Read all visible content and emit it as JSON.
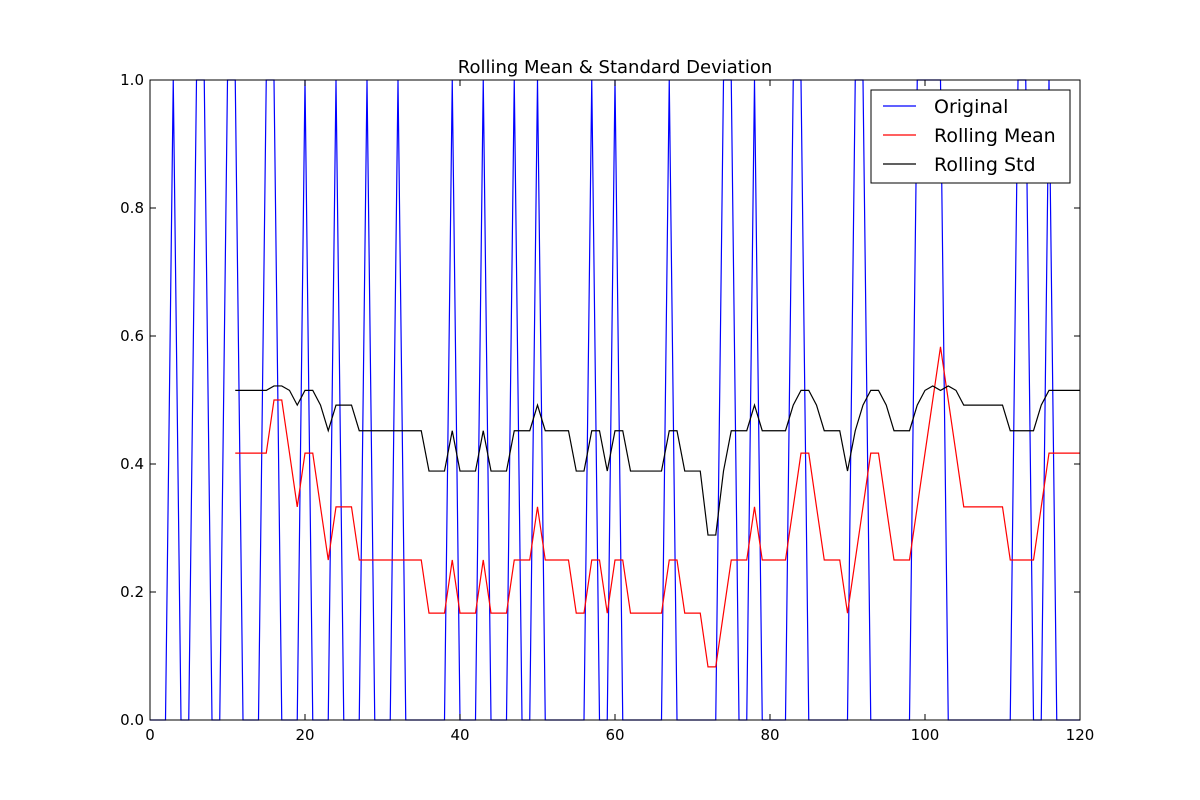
{
  "chart_data": {
    "type": "line",
    "title": "Rolling Mean & Standard Deviation",
    "xlabel": "",
    "ylabel": "",
    "xlim": [
      0,
      120
    ],
    "ylim": [
      0,
      1
    ],
    "xticks": [
      0,
      20,
      40,
      60,
      80,
      100,
      120
    ],
    "yticks": [
      0.0,
      0.2,
      0.4,
      0.6,
      0.8,
      1.0
    ],
    "xtick_labels": [
      "0",
      "20",
      "40",
      "60",
      "80",
      "100",
      "120"
    ],
    "ytick_labels": [
      "0.0",
      "0.2",
      "0.4",
      "0.6",
      "0.8",
      "1.0"
    ],
    "grid": false,
    "legend": "top-right",
    "series": [
      {
        "name": "Original",
        "color": "#0000ff",
        "x": [
          0,
          1,
          2,
          3,
          4,
          5,
          6,
          7,
          8,
          9,
          10,
          11,
          12,
          13,
          14,
          15,
          16,
          17,
          18,
          19,
          20,
          21,
          22,
          23,
          24,
          25,
          26,
          27,
          28,
          29,
          30,
          31,
          32,
          33,
          34,
          35,
          36,
          37,
          38,
          39,
          40,
          41,
          42,
          43,
          44,
          45,
          46,
          47,
          48,
          49,
          50,
          51,
          52,
          53,
          54,
          55,
          56,
          57,
          58,
          59,
          60,
          61,
          62,
          63,
          64,
          65,
          66,
          67,
          68,
          69,
          70,
          71,
          72,
          73,
          74,
          75,
          76,
          77,
          78,
          79,
          80,
          81,
          82,
          83,
          84,
          85,
          86,
          87,
          88,
          89,
          90,
          91,
          92,
          93,
          94,
          95,
          96,
          97,
          98,
          99,
          100,
          101,
          102,
          103,
          104,
          105,
          106,
          107,
          108,
          109,
          110,
          111,
          112,
          113,
          114,
          115,
          116,
          117,
          118,
          119,
          120
        ],
        "y": [
          0,
          0,
          0,
          1,
          0,
          0,
          1,
          1,
          0,
          0,
          1,
          1,
          0,
          0,
          0,
          1,
          1,
          0,
          0,
          0,
          1,
          0,
          0,
          0,
          1,
          0,
          0,
          0,
          1,
          0,
          0,
          0,
          1,
          0,
          0,
          0,
          0,
          0,
          0,
          1,
          0,
          0,
          0,
          1,
          0,
          0,
          0,
          1,
          0,
          0,
          1,
          0,
          0,
          0,
          0,
          0,
          0,
          1,
          0,
          0,
          1,
          0,
          0,
          0,
          0,
          0,
          0,
          1,
          0,
          0,
          0,
          0,
          0,
          0,
          1,
          1,
          0,
          0,
          1,
          0,
          0,
          0,
          0,
          1,
          1,
          0,
          0,
          0,
          0,
          0,
          0,
          1,
          1,
          0,
          0,
          0,
          0,
          0,
          0,
          1,
          1,
          1,
          1,
          0,
          0,
          0,
          0,
          0,
          0,
          0,
          0,
          0,
          1,
          1,
          0,
          0,
          1,
          0,
          0,
          0,
          0
        ]
      },
      {
        "name": "Rolling Mean",
        "color": "#ff0000",
        "x": [
          11,
          12,
          13,
          14,
          15,
          16,
          17,
          18,
          19,
          20,
          21,
          22,
          23,
          24,
          25,
          26,
          27,
          28,
          29,
          30,
          31,
          32,
          33,
          34,
          35,
          36,
          37,
          38,
          39,
          40,
          41,
          42,
          43,
          44,
          45,
          46,
          47,
          48,
          49,
          50,
          51,
          52,
          53,
          54,
          55,
          56,
          57,
          58,
          59,
          60,
          61,
          62,
          63,
          64,
          65,
          66,
          67,
          68,
          69,
          70,
          71,
          72,
          73,
          74,
          75,
          76,
          77,
          78,
          79,
          80,
          81,
          82,
          83,
          84,
          85,
          86,
          87,
          88,
          89,
          90,
          91,
          92,
          93,
          94,
          95,
          96,
          97,
          98,
          99,
          100,
          101,
          102,
          103,
          104,
          105,
          106,
          107,
          108,
          109,
          110,
          111,
          112,
          113,
          114,
          115,
          116,
          117,
          118,
          119,
          120
        ],
        "y": [
          0.417,
          0.417,
          0.417,
          0.417,
          0.417,
          0.5,
          0.5,
          0.417,
          0.333,
          0.417,
          0.417,
          0.333,
          0.25,
          0.333,
          0.333,
          0.333,
          0.25,
          0.25,
          0.25,
          0.25,
          0.25,
          0.25,
          0.25,
          0.25,
          0.25,
          0.167,
          0.167,
          0.167,
          0.25,
          0.167,
          0.167,
          0.167,
          0.25,
          0.167,
          0.167,
          0.167,
          0.25,
          0.25,
          0.25,
          0.333,
          0.25,
          0.25,
          0.25,
          0.25,
          0.167,
          0.167,
          0.25,
          0.25,
          0.167,
          0.25,
          0.25,
          0.167,
          0.167,
          0.167,
          0.167,
          0.167,
          0.25,
          0.25,
          0.167,
          0.167,
          0.167,
          0.083,
          0.083,
          0.167,
          0.25,
          0.25,
          0.25,
          0.333,
          0.25,
          0.25,
          0.25,
          0.25,
          0.333,
          0.417,
          0.417,
          0.333,
          0.25,
          0.25,
          0.25,
          0.167,
          0.25,
          0.333,
          0.417,
          0.417,
          0.333,
          0.25,
          0.25,
          0.25,
          0.333,
          0.417,
          0.5,
          0.583,
          0.5,
          0.417,
          0.333,
          0.333,
          0.333,
          0.333,
          0.333,
          0.333,
          0.25,
          0.25,
          0.25,
          0.25,
          0.333,
          0.417,
          0.417,
          0.417,
          0.417,
          0.417
        ]
      },
      {
        "name": "Rolling Std",
        "color": "#000000",
        "x": [
          11,
          12,
          13,
          14,
          15,
          16,
          17,
          18,
          19,
          20,
          21,
          22,
          23,
          24,
          25,
          26,
          27,
          28,
          29,
          30,
          31,
          32,
          33,
          34,
          35,
          36,
          37,
          38,
          39,
          40,
          41,
          42,
          43,
          44,
          45,
          46,
          47,
          48,
          49,
          50,
          51,
          52,
          53,
          54,
          55,
          56,
          57,
          58,
          59,
          60,
          61,
          62,
          63,
          64,
          65,
          66,
          67,
          68,
          69,
          70,
          71,
          72,
          73,
          74,
          75,
          76,
          77,
          78,
          79,
          80,
          81,
          82,
          83,
          84,
          85,
          86,
          87,
          88,
          89,
          90,
          91,
          92,
          93,
          94,
          95,
          96,
          97,
          98,
          99,
          100,
          101,
          102,
          103,
          104,
          105,
          106,
          107,
          108,
          109,
          110,
          111,
          112,
          113,
          114,
          115,
          116,
          117,
          118,
          119,
          120
        ],
        "y": [
          0.515,
          0.515,
          0.515,
          0.515,
          0.515,
          0.522,
          0.522,
          0.515,
          0.492,
          0.515,
          0.515,
          0.492,
          0.452,
          0.492,
          0.492,
          0.492,
          0.452,
          0.452,
          0.452,
          0.452,
          0.452,
          0.452,
          0.452,
          0.452,
          0.452,
          0.389,
          0.389,
          0.389,
          0.452,
          0.389,
          0.389,
          0.389,
          0.452,
          0.389,
          0.389,
          0.389,
          0.452,
          0.452,
          0.452,
          0.492,
          0.452,
          0.452,
          0.452,
          0.452,
          0.389,
          0.389,
          0.452,
          0.452,
          0.389,
          0.452,
          0.452,
          0.389,
          0.389,
          0.389,
          0.389,
          0.389,
          0.452,
          0.452,
          0.389,
          0.389,
          0.389,
          0.289,
          0.289,
          0.389,
          0.452,
          0.452,
          0.452,
          0.492,
          0.452,
          0.452,
          0.452,
          0.452,
          0.492,
          0.515,
          0.515,
          0.492,
          0.452,
          0.452,
          0.452,
          0.389,
          0.452,
          0.492,
          0.515,
          0.515,
          0.492,
          0.452,
          0.452,
          0.452,
          0.492,
          0.515,
          0.522,
          0.515,
          0.522,
          0.515,
          0.492,
          0.492,
          0.492,
          0.492,
          0.492,
          0.492,
          0.452,
          0.452,
          0.452,
          0.452,
          0.492,
          0.515,
          0.515,
          0.515,
          0.515,
          0.515
        ]
      }
    ]
  }
}
